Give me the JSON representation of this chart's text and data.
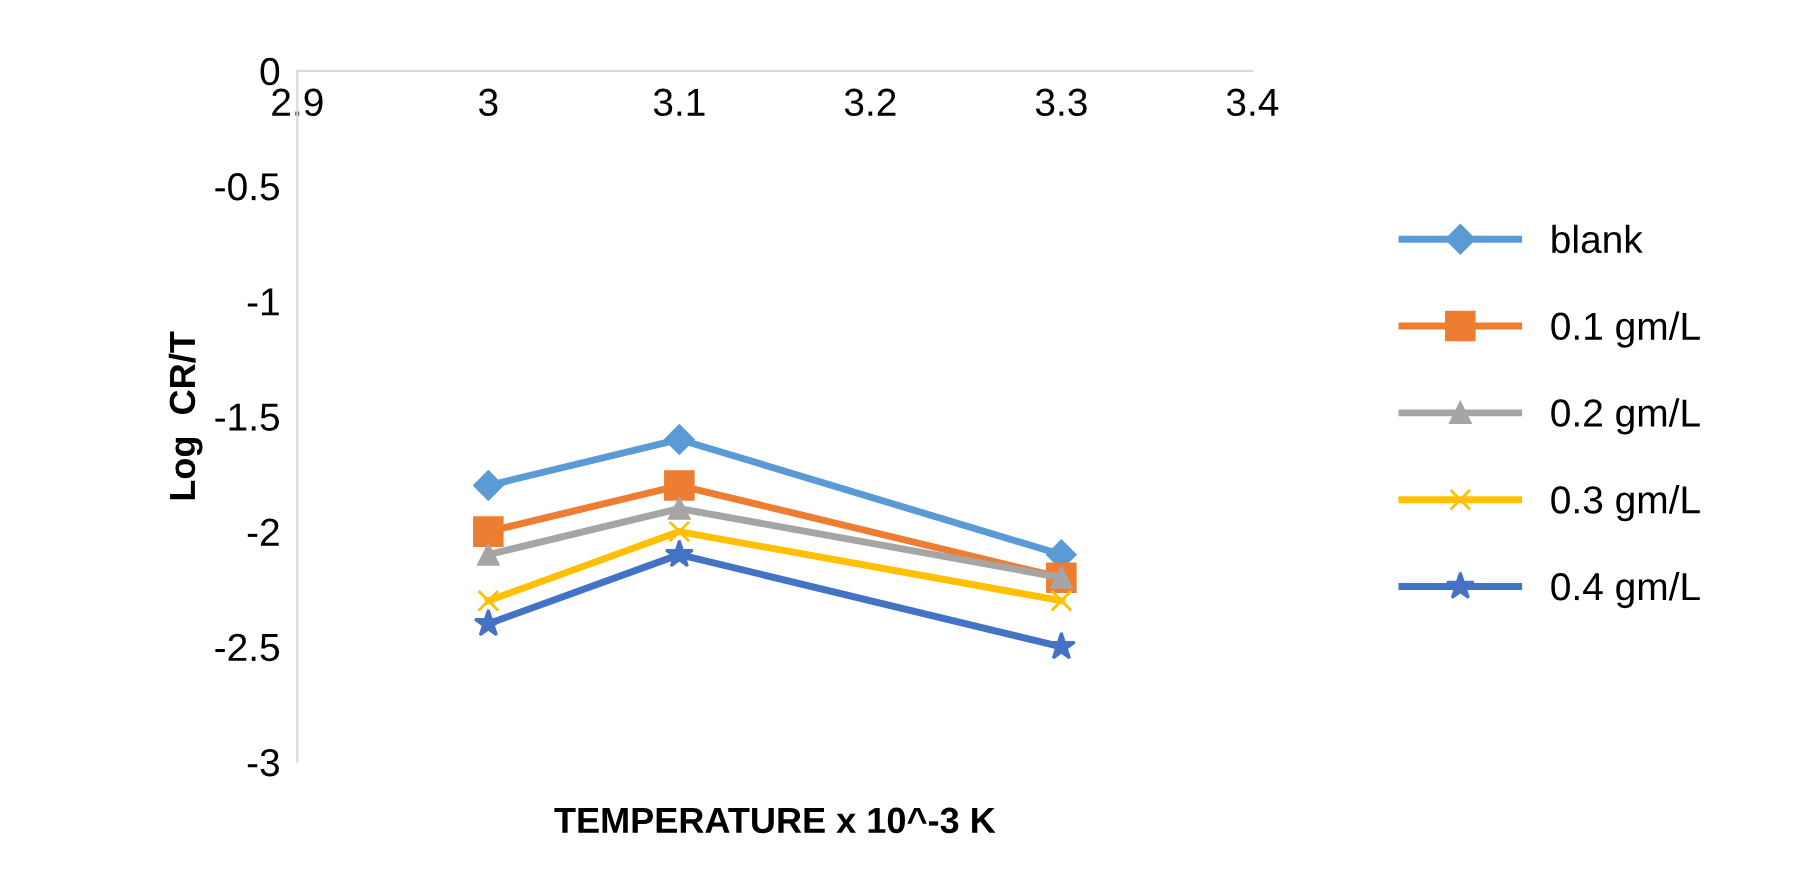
{
  "chart_data": {
    "type": "line",
    "xlabel": "TEMPERATURE x 10^-3 K",
    "ylabel": "Log  CR/T",
    "x": [
      3.0,
      3.1,
      3.3
    ],
    "xlim": [
      2.9,
      3.4
    ],
    "xticks": [
      2.9,
      3,
      3.1,
      3.2,
      3.3,
      3.4
    ],
    "ylim": [
      -3,
      0
    ],
    "yticks": [
      0,
      -0.5,
      -1,
      -1.5,
      -2,
      -2.5,
      -3
    ],
    "grid": false,
    "legend": "right",
    "line_style": "solid",
    "series": [
      {
        "name": "blank",
        "color": "#5b9bd5",
        "marker": "diamond",
        "values": [
          -1.8,
          -1.6,
          -2.1
        ]
      },
      {
        "name": "0.1 gm/L",
        "color": "#ed7d31",
        "marker": "square",
        "values": [
          -2.0,
          -1.8,
          -2.2
        ]
      },
      {
        "name": "0.2 gm/L",
        "color": "#a5a5a5",
        "marker": "triangle",
        "values": [
          -2.1,
          -1.9,
          -2.2
        ]
      },
      {
        "name": "0.3 gm/L",
        "color": "#ffc000",
        "marker": "cross",
        "values": [
          -2.3,
          -2.0,
          -2.3
        ]
      },
      {
        "name": "0.4 gm/L",
        "color": "#4472c4",
        "marker": "star",
        "values": [
          -2.4,
          -2.1,
          -2.5
        ]
      }
    ]
  }
}
